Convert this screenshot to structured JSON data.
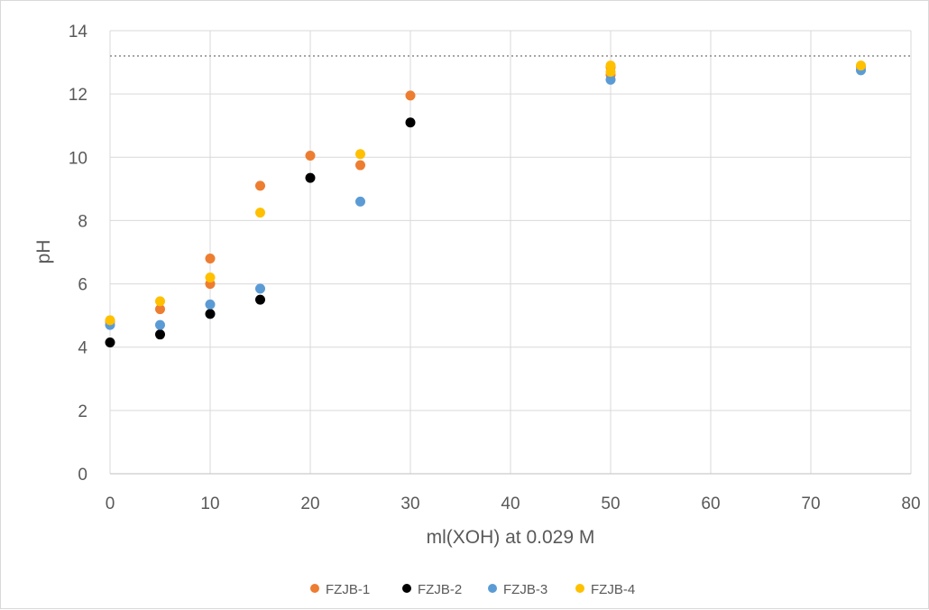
{
  "chart_data": {
    "type": "scatter",
    "title": "",
    "xlabel": "ml(XOH) at 0.029 M",
    "ylabel": "pH",
    "xlim": [
      0,
      80
    ],
    "ylim": [
      0,
      14
    ],
    "x_ticks": [
      0,
      10,
      20,
      30,
      40,
      50,
      60,
      70,
      80
    ],
    "y_ticks": [
      0,
      2,
      4,
      6,
      8,
      10,
      12,
      14
    ],
    "grid": "vertical and horizontal major gridlines",
    "legend_position": "bottom",
    "reference_line": {
      "y": 13.2,
      "style": "dotted",
      "color": "#a6a6a6"
    },
    "series": [
      {
        "name": "FZJB-1",
        "color": "#ed7d31",
        "points": [
          [
            0,
            4.8
          ],
          [
            5,
            5.2
          ],
          [
            10,
            6.0
          ],
          [
            10,
            6.8
          ],
          [
            15,
            9.1
          ],
          [
            20,
            10.05
          ],
          [
            25,
            9.75
          ],
          [
            30,
            11.95
          ],
          [
            50,
            12.6
          ],
          [
            50,
            12.85
          ],
          [
            75,
            12.85
          ]
        ]
      },
      {
        "name": "FZJB-2",
        "color": "#000000",
        "points": [
          [
            0,
            4.15
          ],
          [
            5,
            4.4
          ],
          [
            10,
            5.05
          ],
          [
            15,
            5.5
          ],
          [
            20,
            9.35
          ],
          [
            30,
            11.1
          ]
        ]
      },
      {
        "name": "FZJB-3",
        "color": "#5b9bd5",
        "points": [
          [
            0,
            4.7
          ],
          [
            5,
            4.7
          ],
          [
            10,
            5.35
          ],
          [
            15,
            5.85
          ],
          [
            25,
            8.6
          ],
          [
            50,
            12.45
          ],
          [
            75,
            12.75
          ]
        ]
      },
      {
        "name": "FZJB-4",
        "color": "#ffc000",
        "points": [
          [
            0,
            4.85
          ],
          [
            5,
            5.45
          ],
          [
            10,
            6.2
          ],
          [
            15,
            8.25
          ],
          [
            25,
            10.1
          ],
          [
            50,
            12.7
          ],
          [
            50,
            12.9
          ],
          [
            75,
            12.9
          ]
        ]
      }
    ]
  }
}
